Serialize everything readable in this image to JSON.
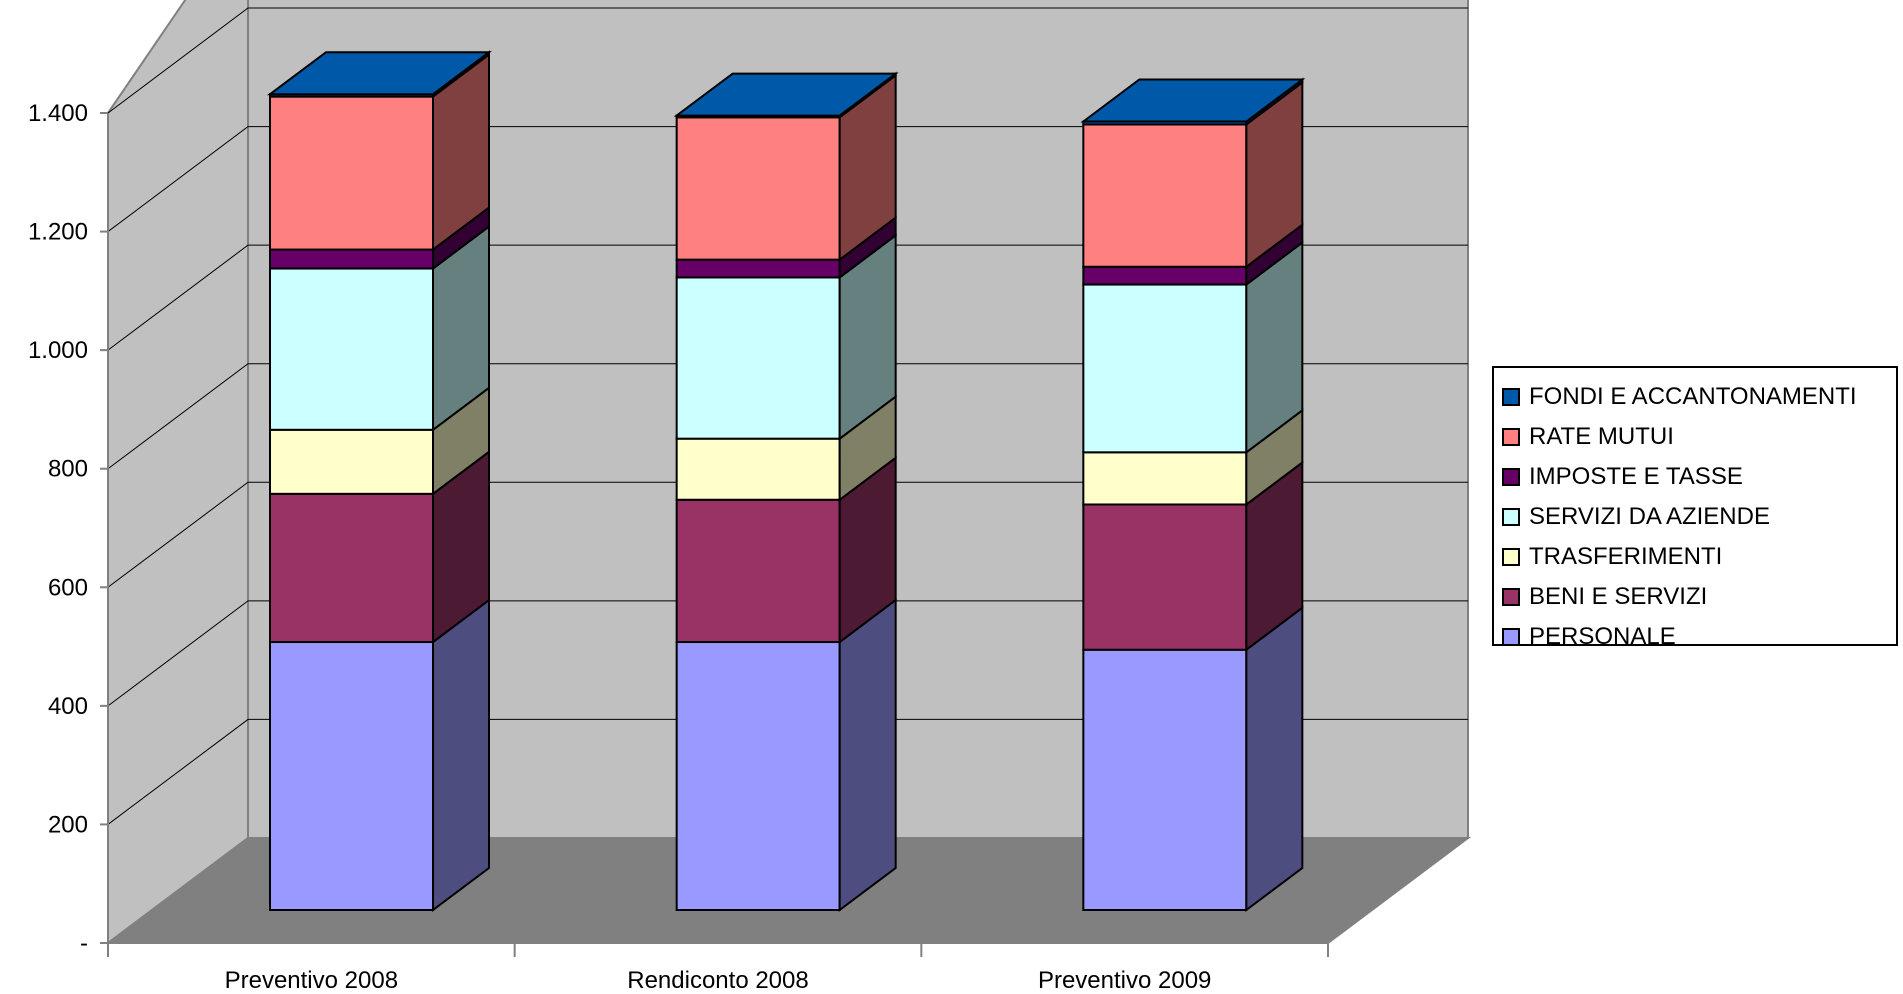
{
  "chart_data": {
    "type": "bar",
    "stacked": true,
    "three_d": true,
    "categories": [
      "Preventivo 2008",
      "Rendiconto 2008",
      "Preventivo 2009"
    ],
    "series": [
      {
        "name": "PERSONALE",
        "values": [
          452,
          452,
          439
        ],
        "color": "#9999FF",
        "side": "#4D4D80",
        "top": "#B8B8FF"
      },
      {
        "name": "BENI E SERVIZI",
        "values": [
          250,
          240,
          245
        ],
        "color": "#993366",
        "side": "#4D1A33",
        "top": "#B85C85"
      },
      {
        "name": "TRASFERIMENTI",
        "values": [
          108,
          103,
          88
        ],
        "color": "#FFFFCC",
        "side": "#808066",
        "top": "#FFFFE0"
      },
      {
        "name": "SERVIZI DA AZIENDE",
        "values": [
          272,
          272,
          283
        ],
        "color": "#CCFFFF",
        "side": "#668080",
        "top": "#E0FFFF"
      },
      {
        "name": "IMPOSTE E TASSE",
        "values": [
          32,
          30,
          30
        ],
        "color": "#660066",
        "side": "#330033",
        "top": "#853385"
      },
      {
        "name": "RATE MUTUI",
        "values": [
          258,
          240,
          240
        ],
        "color": "#FF8080",
        "side": "#804040",
        "top": "#FFA6A6"
      },
      {
        "name": "FONDI E ACCANTONAMENTI",
        "values": [
          4,
          3,
          5
        ],
        "color": "#0058A8",
        "side": "#002C54",
        "top": "#0058A8"
      }
    ],
    "y_ticks": [
      {
        "value": 0,
        "label": "-"
      },
      {
        "value": 200,
        "label": "200"
      },
      {
        "value": 400,
        "label": "400"
      },
      {
        "value": 600,
        "label": "600"
      },
      {
        "value": 800,
        "label": "800"
      },
      {
        "value": 1000,
        "label": "1.000"
      },
      {
        "value": 1200,
        "label": "1.200"
      },
      {
        "value": 1400,
        "label": "1.400"
      }
    ],
    "ylim": [
      0,
      1400
    ],
    "grid": true,
    "legend_position": "right",
    "title": "",
    "xlabel": "",
    "ylabel": "",
    "colors": {
      "back_wall": "#C0C0C0",
      "side_wall": "#C0C0C0",
      "floor": "#808080",
      "grid": "#000000"
    }
  }
}
